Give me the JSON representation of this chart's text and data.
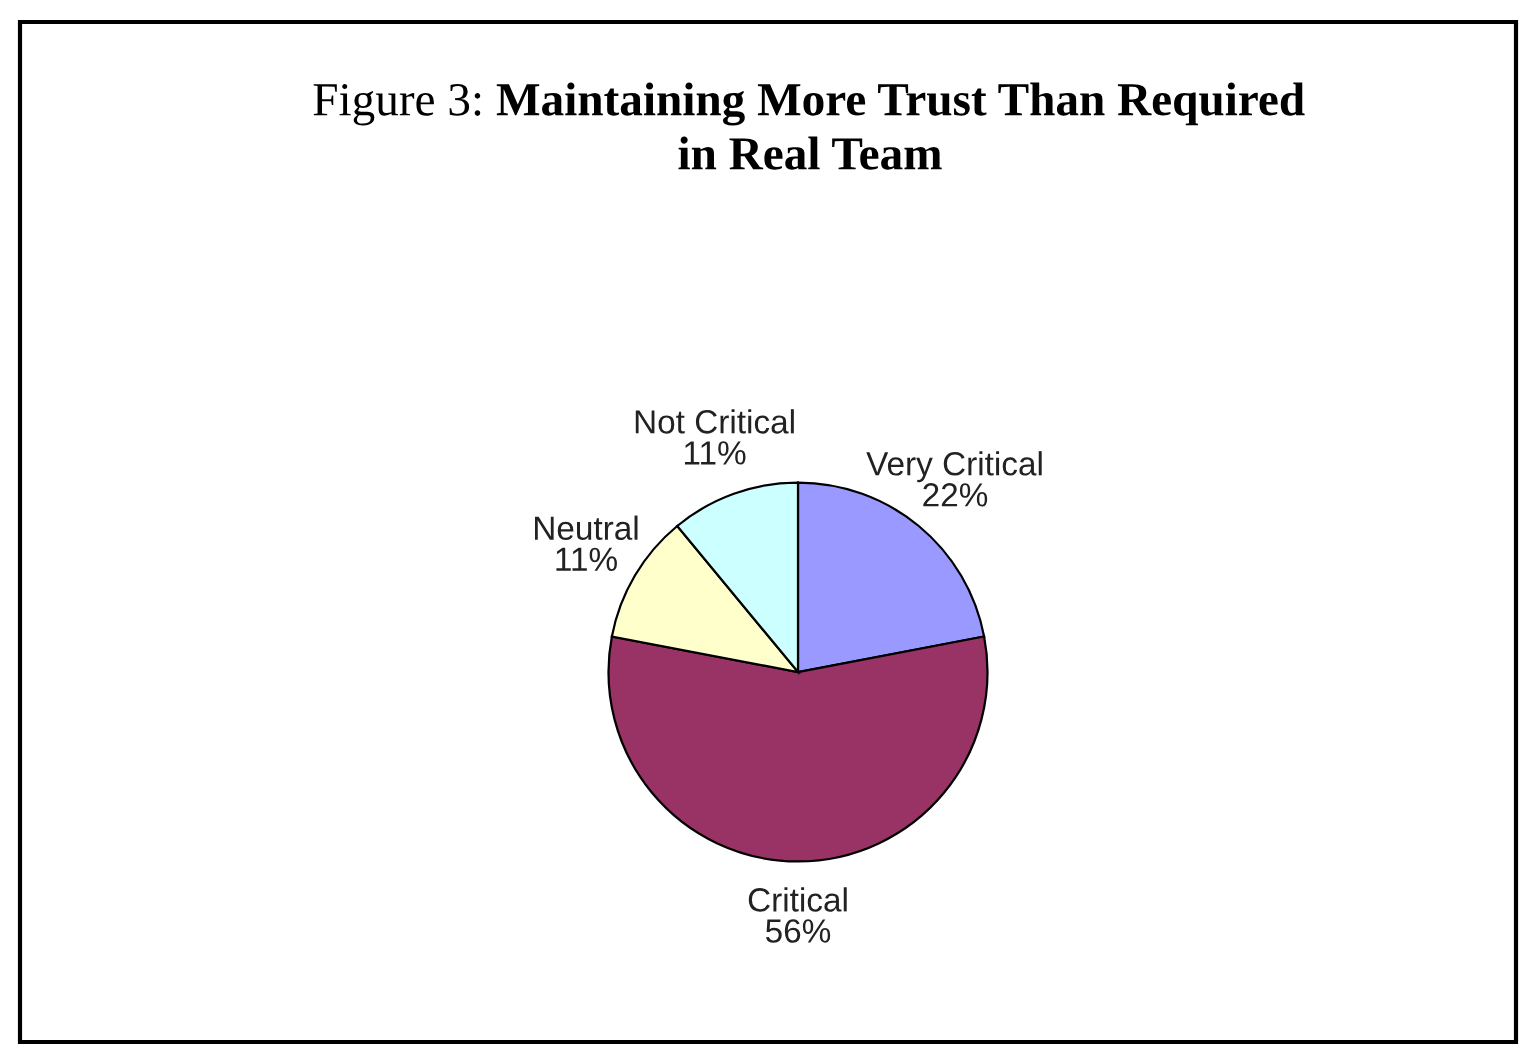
{
  "chart_data": {
    "type": "pie",
    "title": "Maintaining More Trust Than Required\nin Real Team",
    "annotations": [
      "Figure 3:"
    ],
    "categories": [
      "Very Critical",
      "Critical",
      "Neutral",
      "Not Critical"
    ],
    "values": [
      22,
      56,
      11,
      11
    ],
    "colors": [
      "#9999ff",
      "#993366",
      "#ffffcc",
      "#ccffff"
    ],
    "value_labels": [
      "22%",
      "56%",
      "11%",
      "11%"
    ],
    "legend": false
  }
}
